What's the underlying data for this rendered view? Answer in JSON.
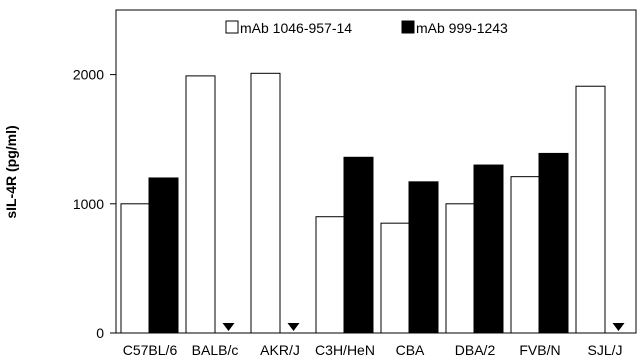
{
  "chart_data": {
    "type": "bar",
    "title": "",
    "xlabel": "",
    "ylabel": "sIL-4R (pg/ml)",
    "ylim": [
      0,
      2500
    ],
    "yticks": [
      0,
      1000,
      2000
    ],
    "grid": false,
    "legend_position": "top",
    "categories": [
      "C57BL/6",
      "BALB/c",
      "AKR/J",
      "C3H/HeN",
      "CBA",
      "DBA/2",
      "FVB/N",
      "SJL/J"
    ],
    "series": [
      {
        "name": "mAb 1046-957-14",
        "color": "#ffffff",
        "values": [
          1000,
          1990,
          2010,
          900,
          850,
          1000,
          1210,
          1910
        ]
      },
      {
        "name": "mAb 999-1243",
        "color": "#000000",
        "values": [
          1200,
          0,
          0,
          1360,
          1170,
          1300,
          1390,
          0
        ]
      }
    ],
    "annotations": {
      "marker": "down-triangle",
      "meaning_categories": [
        "BALB/c",
        "AKR/J",
        "SJL/J"
      ],
      "series": "mAb 999-1243"
    }
  }
}
